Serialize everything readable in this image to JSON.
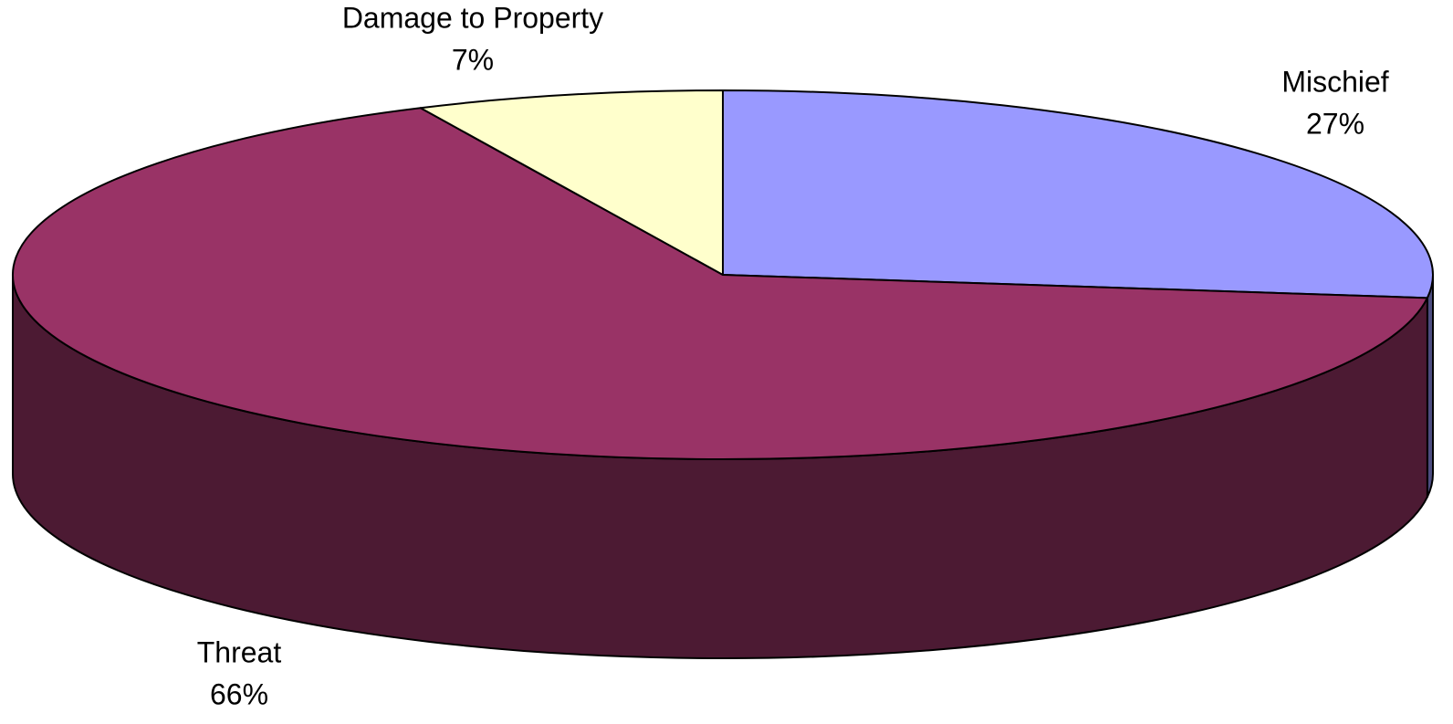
{
  "chart_data": {
    "type": "pie",
    "categories": [
      "Mischief",
      "Threat",
      "Damage to Property"
    ],
    "values": [
      27,
      66,
      7
    ],
    "value_labels": [
      "27%",
      "66%",
      "7%"
    ],
    "colors": [
      "#9999ff",
      "#993366",
      "#ffffcc"
    ],
    "side_colors": [
      "#4d4d80",
      "#4c1a33",
      "#80806a"
    ]
  }
}
